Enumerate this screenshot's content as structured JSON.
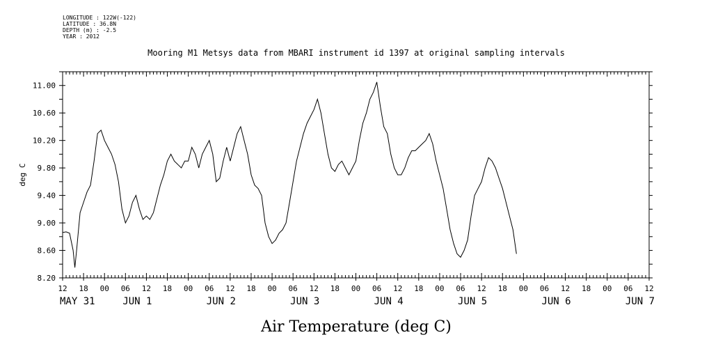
{
  "meta": {
    "longitude": "LONGITUDE : 122W(-122)",
    "latitude": "LATITUDE : 36.8N",
    "depth": "DEPTH (m) : -2.5",
    "year": "YEAR : 2012"
  },
  "chart_data": {
    "type": "line",
    "title": "Mooring M1 Metsys data from MBARI instrument id 1397 at original sampling intervals",
    "ylabel": "deg C",
    "xlabel": "Air Temperature (deg C)",
    "ylim": [
      8.2,
      11.2
    ],
    "yticks": [
      "8.20",
      "8.60",
      "9.00",
      "9.40",
      "9.80",
      "10.20",
      "10.60",
      "11.00"
    ],
    "xlim_hours": [
      0,
      168
    ],
    "xtick_hour_labels": [
      "12",
      "18",
      "00",
      "06",
      "12",
      "18",
      "00",
      "06",
      "12",
      "18",
      "00",
      "06",
      "12",
      "18",
      "00",
      "06",
      "12",
      "18",
      "00",
      "06",
      "12",
      "18",
      "00",
      "06",
      "12",
      "18",
      "00",
      "06",
      "12"
    ],
    "date_labels": [
      "MAY 31",
      "JUN  1",
      "JUN  2",
      "JUN  3",
      "JUN  4",
      "JUN  5",
      "JUN  6",
      "JUN  7"
    ],
    "series": [
      {
        "values": [
          [
            0,
            8.86
          ],
          [
            1,
            8.87
          ],
          [
            2,
            8.85
          ],
          [
            3,
            8.6
          ],
          [
            3.5,
            8.35
          ],
          [
            4,
            8.6
          ],
          [
            5,
            9.15
          ],
          [
            6,
            9.3
          ],
          [
            7,
            9.45
          ],
          [
            8,
            9.55
          ],
          [
            9,
            9.9
          ],
          [
            10,
            10.3
          ],
          [
            11,
            10.35
          ],
          [
            12,
            10.2
          ],
          [
            13,
            10.1
          ],
          [
            14,
            10.0
          ],
          [
            15,
            9.85
          ],
          [
            16,
            9.6
          ],
          [
            17,
            9.2
          ],
          [
            18,
            9.0
          ],
          [
            19,
            9.1
          ],
          [
            20,
            9.3
          ],
          [
            21,
            9.4
          ],
          [
            22,
            9.2
          ],
          [
            23,
            9.05
          ],
          [
            24,
            9.1
          ],
          [
            25,
            9.05
          ],
          [
            26,
            9.15
          ],
          [
            27,
            9.35
          ],
          [
            28,
            9.55
          ],
          [
            29,
            9.7
          ],
          [
            30,
            9.9
          ],
          [
            31,
            10.0
          ],
          [
            32,
            9.9
          ],
          [
            33,
            9.85
          ],
          [
            34,
            9.8
          ],
          [
            35,
            9.9
          ],
          [
            36,
            9.9
          ],
          [
            37,
            10.1
          ],
          [
            38,
            10.0
          ],
          [
            39,
            9.8
          ],
          [
            40,
            10.0
          ],
          [
            41,
            10.1
          ],
          [
            42,
            10.2
          ],
          [
            43,
            10.0
          ],
          [
            44,
            9.6
          ],
          [
            45,
            9.65
          ],
          [
            46,
            9.9
          ],
          [
            47,
            10.1
          ],
          [
            48,
            9.9
          ],
          [
            49,
            10.1
          ],
          [
            50,
            10.3
          ],
          [
            51,
            10.4
          ],
          [
            52,
            10.2
          ],
          [
            53,
            10.0
          ],
          [
            54,
            9.7
          ],
          [
            55,
            9.55
          ],
          [
            56,
            9.5
          ],
          [
            57,
            9.4
          ],
          [
            58,
            9.0
          ],
          [
            59,
            8.8
          ],
          [
            60,
            8.7
          ],
          [
            61,
            8.75
          ],
          [
            62,
            8.85
          ],
          [
            63,
            8.9
          ],
          [
            64,
            9.0
          ],
          [
            65,
            9.3
          ],
          [
            66,
            9.6
          ],
          [
            67,
            9.9
          ],
          [
            68,
            10.1
          ],
          [
            69,
            10.3
          ],
          [
            70,
            10.45
          ],
          [
            71,
            10.55
          ],
          [
            72,
            10.65
          ],
          [
            73,
            10.8
          ],
          [
            74,
            10.6
          ],
          [
            75,
            10.3
          ],
          [
            76,
            10.0
          ],
          [
            77,
            9.8
          ],
          [
            78,
            9.75
          ],
          [
            79,
            9.85
          ],
          [
            80,
            9.9
          ],
          [
            81,
            9.8
          ],
          [
            82,
            9.7
          ],
          [
            83,
            9.8
          ],
          [
            84,
            9.9
          ],
          [
            85,
            10.2
          ],
          [
            86,
            10.45
          ],
          [
            87,
            10.6
          ],
          [
            88,
            10.8
          ],
          [
            89,
            10.9
          ],
          [
            90,
            11.05
          ],
          [
            91,
            10.7
          ],
          [
            92,
            10.4
          ],
          [
            93,
            10.3
          ],
          [
            94,
            10.0
          ],
          [
            95,
            9.8
          ],
          [
            96,
            9.7
          ],
          [
            97,
            9.7
          ],
          [
            98,
            9.8
          ],
          [
            99,
            9.95
          ],
          [
            100,
            10.05
          ],
          [
            101,
            10.05
          ],
          [
            102,
            10.1
          ],
          [
            103,
            10.15
          ],
          [
            104,
            10.2
          ],
          [
            105,
            10.3
          ],
          [
            106,
            10.15
          ],
          [
            107,
            9.9
          ],
          [
            108,
            9.7
          ],
          [
            109,
            9.5
          ],
          [
            110,
            9.2
          ],
          [
            111,
            8.9
          ],
          [
            112,
            8.7
          ],
          [
            113,
            8.55
          ],
          [
            114,
            8.5
          ],
          [
            115,
            8.6
          ],
          [
            116,
            8.75
          ],
          [
            117,
            9.1
          ],
          [
            118,
            9.4
          ],
          [
            119,
            9.5
          ],
          [
            120,
            9.6
          ],
          [
            121,
            9.8
          ],
          [
            122,
            9.95
          ],
          [
            123,
            9.9
          ],
          [
            124,
            9.8
          ],
          [
            125,
            9.65
          ],
          [
            126,
            9.5
          ],
          [
            127,
            9.3
          ],
          [
            128,
            9.1
          ],
          [
            129,
            8.9
          ],
          [
            130,
            8.55
          ]
        ]
      }
    ]
  }
}
